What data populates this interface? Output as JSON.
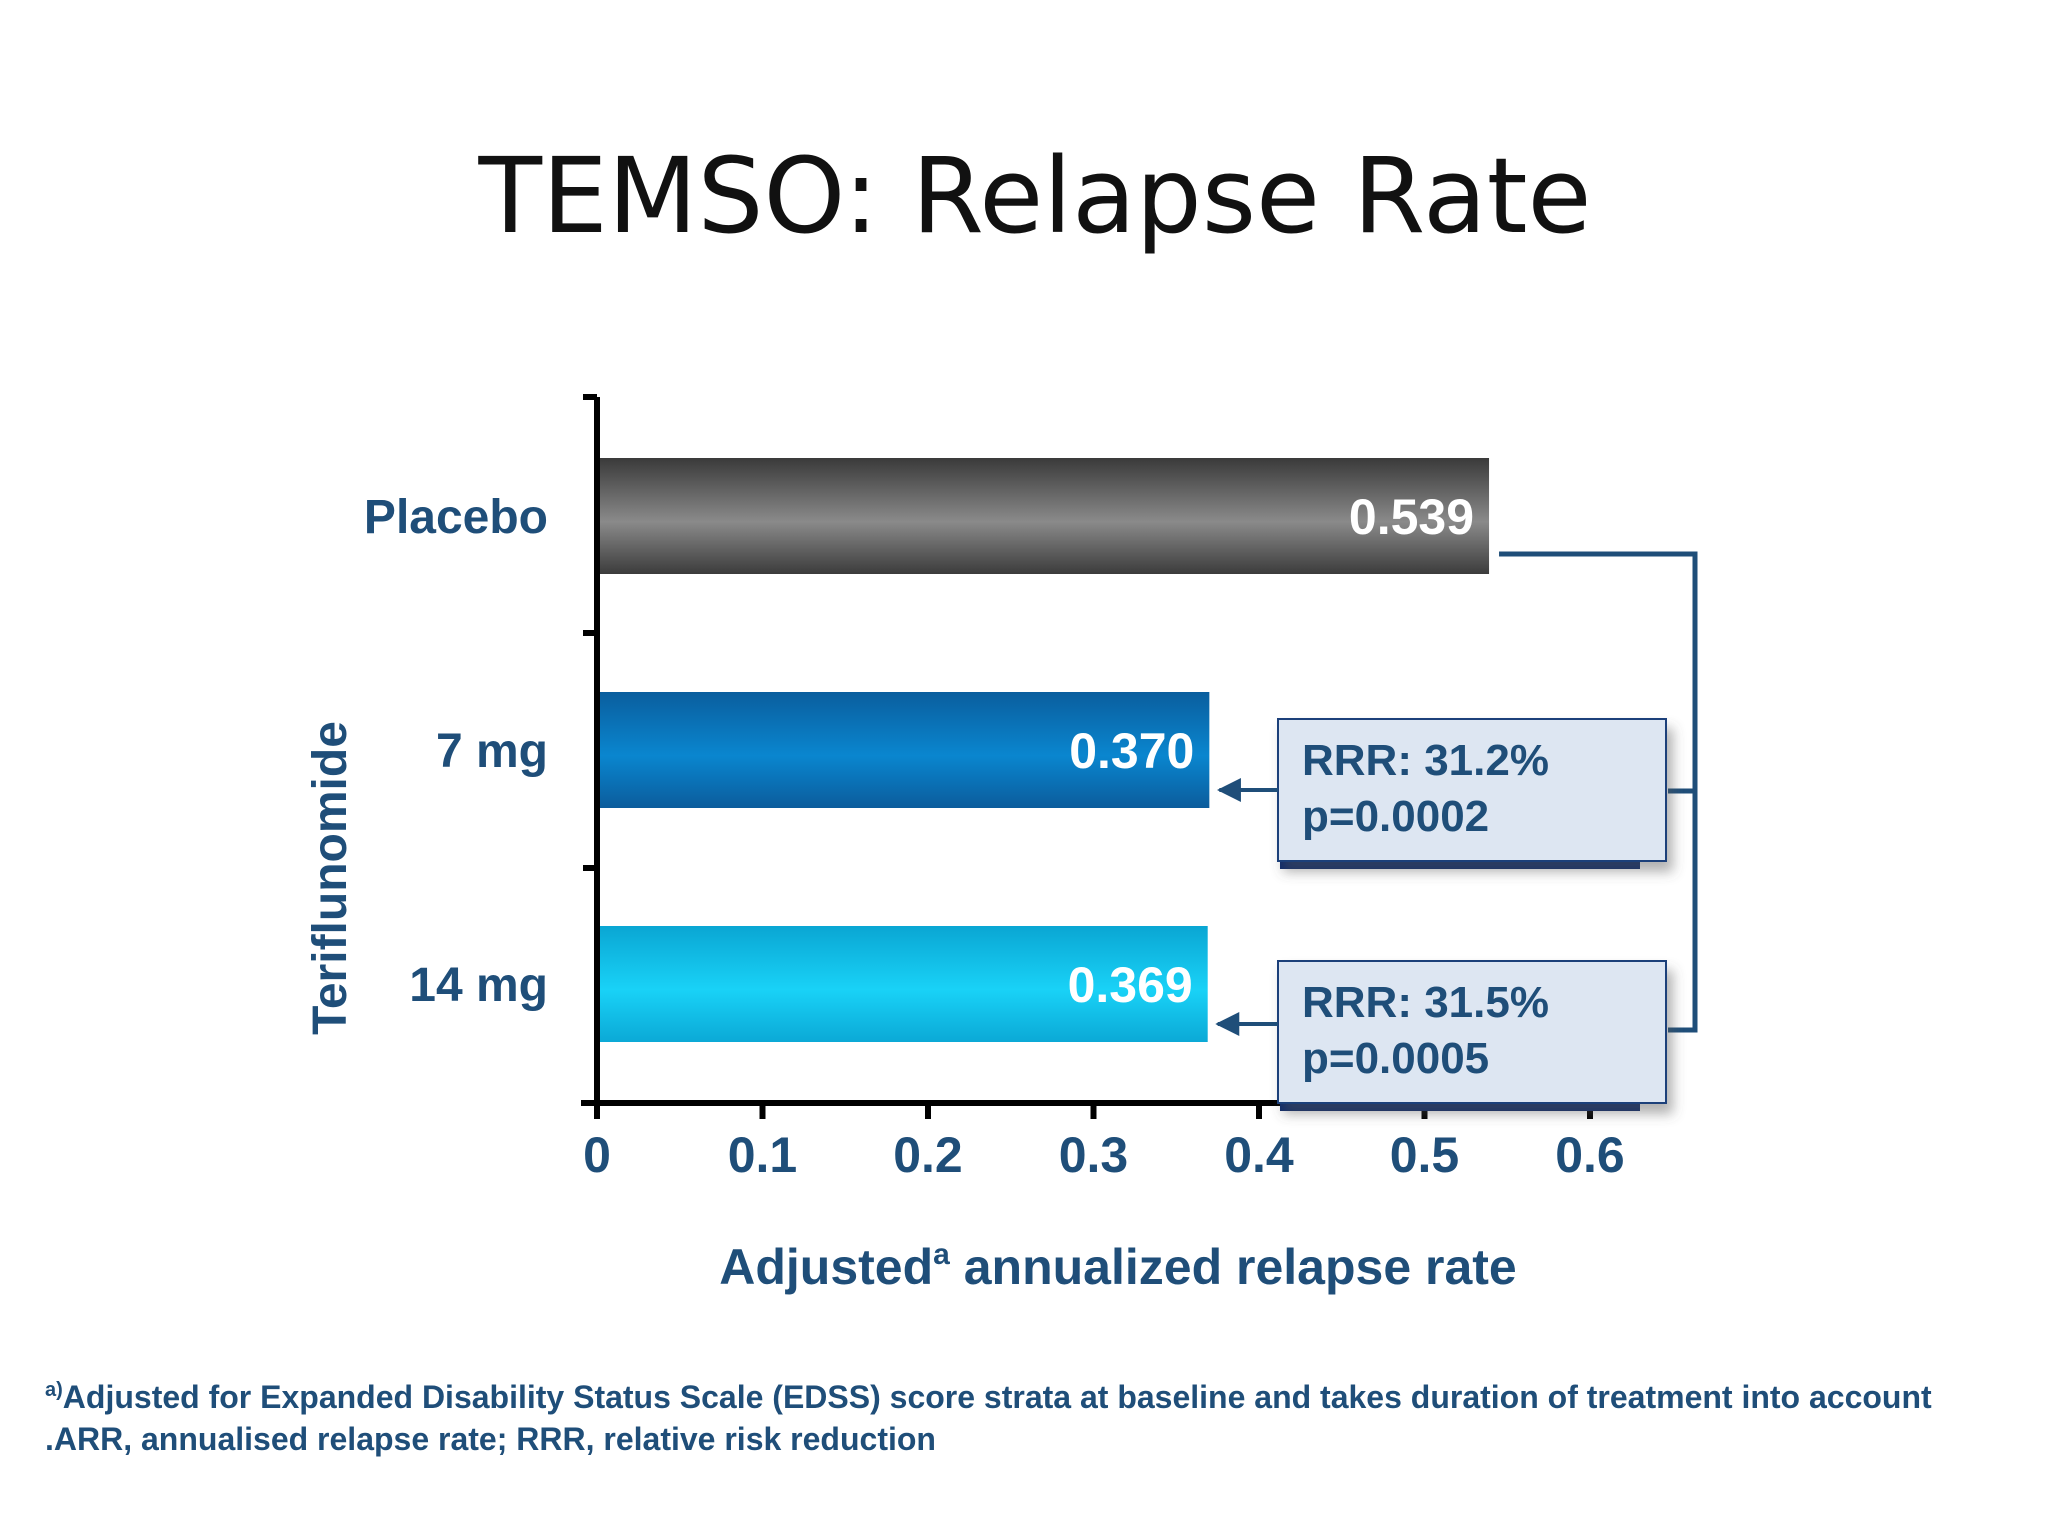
{
  "title": "TEMSO: Relapse Rate",
  "chart_data": {
    "type": "bar",
    "orientation": "horizontal",
    "categories": [
      "Placebo",
      "7 mg",
      "14 mg"
    ],
    "values": [
      0.539,
      0.37,
      0.369
    ],
    "value_labels": [
      "0.539",
      "0.370",
      "0.369"
    ],
    "group_label": "Teriflunomide",
    "xlabel": "Adjusted",
    "xlabel_superscript": "a",
    "xlabel_rest": " annualized relapse rate",
    "ylabel": "",
    "xlim": [
      0,
      0.6
    ],
    "xticks": [
      "0",
      "0.1",
      "0.2",
      "0.3",
      "0.4",
      "0.5",
      "0.6"
    ],
    "grid": false,
    "colors": {
      "Placebo": "#555555",
      "7 mg": "#0a6fb5",
      "14 mg": "#12bce8"
    },
    "annotations": [
      {
        "target": "7 mg",
        "line1": "RRR: 31.2%",
        "line2": "p=0.0002"
      },
      {
        "target": "14 mg",
        "line1": "RRR: 31.5%",
        "line2": "p=0.0005"
      }
    ]
  },
  "footnote": {
    "marker": "a)",
    "text": "Adjusted for Expanded Disability Status Scale (EDSS) score strata at baseline and takes duration of treatment into account  .ARR, annualised relapse rate; RRR, relative risk reduction"
  },
  "accent_color": "#1f4e79"
}
